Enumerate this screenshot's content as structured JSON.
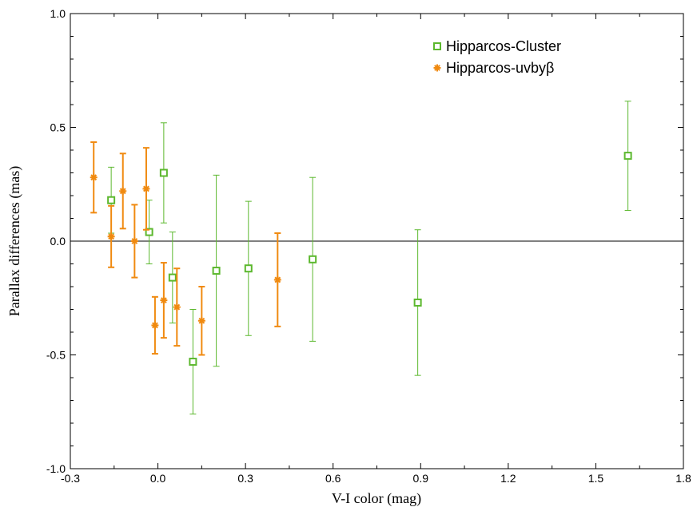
{
  "chart_data": {
    "type": "scatter",
    "title": "",
    "xlabel": "V-I color (mag)",
    "ylabel": "Parallax differences (mas)",
    "xlim": [
      -0.3,
      1.8
    ],
    "ylim": [
      -1.0,
      1.0
    ],
    "x_ticks": [
      -0.3,
      0.0,
      0.3,
      0.6,
      0.9,
      1.2,
      1.5,
      1.8
    ],
    "x_tick_labels": [
      "-0.3",
      "0.0",
      "0.3",
      "0.6",
      "0.9",
      "1.2",
      "1.5",
      "1.8"
    ],
    "y_ticks": [
      -1.0,
      -0.5,
      0.0,
      0.5,
      1.0
    ],
    "y_tick_labels": [
      "-1.0",
      "-0.5",
      "0.0",
      "0.5",
      "1.0"
    ],
    "reference_line_y": 0.0,
    "grid": false,
    "legend_position": "top-right",
    "series": [
      {
        "name": "Hipparcos-Cluster",
        "marker": "open-square",
        "color": "#5cb82e",
        "points": [
          {
            "x": -0.16,
            "y": 0.18,
            "err": 0.145
          },
          {
            "x": -0.03,
            "y": 0.04,
            "err": 0.14
          },
          {
            "x": 0.02,
            "y": 0.3,
            "err": 0.22
          },
          {
            "x": 0.05,
            "y": -0.16,
            "err": 0.2
          },
          {
            "x": 0.12,
            "y": -0.53,
            "err": 0.23
          },
          {
            "x": 0.2,
            "y": -0.13,
            "err": 0.42
          },
          {
            "x": 0.31,
            "y": -0.12,
            "err": 0.295
          },
          {
            "x": 0.53,
            "y": -0.08,
            "err": 0.36
          },
          {
            "x": 0.89,
            "y": -0.27,
            "err": 0.32
          },
          {
            "x": 1.61,
            "y": 0.375,
            "err": 0.24
          }
        ]
      },
      {
        "name": "Hipparcos-uvbyβ",
        "marker": "asterisk",
        "color": "#f08a10",
        "points": [
          {
            "x": -0.22,
            "y": 0.28,
            "err": 0.155
          },
          {
            "x": -0.16,
            "y": 0.02,
            "err": 0.135
          },
          {
            "x": -0.12,
            "y": 0.22,
            "err": 0.165
          },
          {
            "x": -0.08,
            "y": 0.0,
            "err": 0.16
          },
          {
            "x": -0.04,
            "y": 0.23,
            "err": 0.18
          },
          {
            "x": -0.01,
            "y": -0.37,
            "err": 0.125
          },
          {
            "x": 0.02,
            "y": -0.26,
            "err": 0.165
          },
          {
            "x": 0.065,
            "y": -0.29,
            "err": 0.17
          },
          {
            "x": 0.15,
            "y": -0.35,
            "err": 0.15
          },
          {
            "x": 0.41,
            "y": -0.17,
            "err": 0.205
          }
        ]
      }
    ]
  }
}
